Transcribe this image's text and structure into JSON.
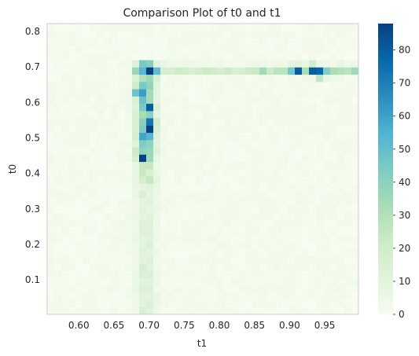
{
  "chart_data": {
    "type": "heatmap",
    "title": "Comparison Plot of t0 and t1",
    "xlabel": "t1",
    "ylabel": "t0",
    "xlim": [
      0.555,
      0.998
    ],
    "ylim": [
      0.003,
      0.822
    ],
    "x_ticks": [
      "0.60",
      "0.65",
      "0.70",
      "0.75",
      "0.80",
      "0.85",
      "0.90",
      "0.95"
    ],
    "y_ticks": [
      "0.1",
      "0.2",
      "0.3",
      "0.4",
      "0.5",
      "0.6",
      "0.7",
      "0.8"
    ],
    "colorbar": {
      "min": 0,
      "max": 88,
      "ticks": [
        "0",
        "10",
        "20",
        "30",
        "40",
        "50",
        "60",
        "70",
        "80"
      ],
      "colormap": "GnBu",
      "stops": [
        "#f7fcf0",
        "#e0f3db",
        "#ccebc5",
        "#a8ddb5",
        "#7bccc4",
        "#4eb3d3",
        "#2b8cbe",
        "#0868ac",
        "#084081"
      ]
    },
    "grid": false,
    "bins": {
      "nx": 44,
      "ny": 40
    },
    "hotspots": [
      {
        "t1": 0.705,
        "t0": 0.685,
        "count": 88
      },
      {
        "t1": 0.7,
        "t0": 0.59,
        "count": 78
      },
      {
        "t1": 0.702,
        "t0": 0.535,
        "count": 86
      },
      {
        "t1": 0.695,
        "t0": 0.51,
        "count": 72
      },
      {
        "t1": 0.935,
        "t0": 0.695,
        "count": 86
      },
      {
        "t1": 0.945,
        "t0": 0.68,
        "count": 62
      },
      {
        "t1": 0.91,
        "t0": 0.695,
        "count": 58
      },
      {
        "t1": 0.69,
        "t0": 0.45,
        "count": 60
      },
      {
        "t1": 0.685,
        "t0": 0.63,
        "count": 65
      }
    ]
  }
}
